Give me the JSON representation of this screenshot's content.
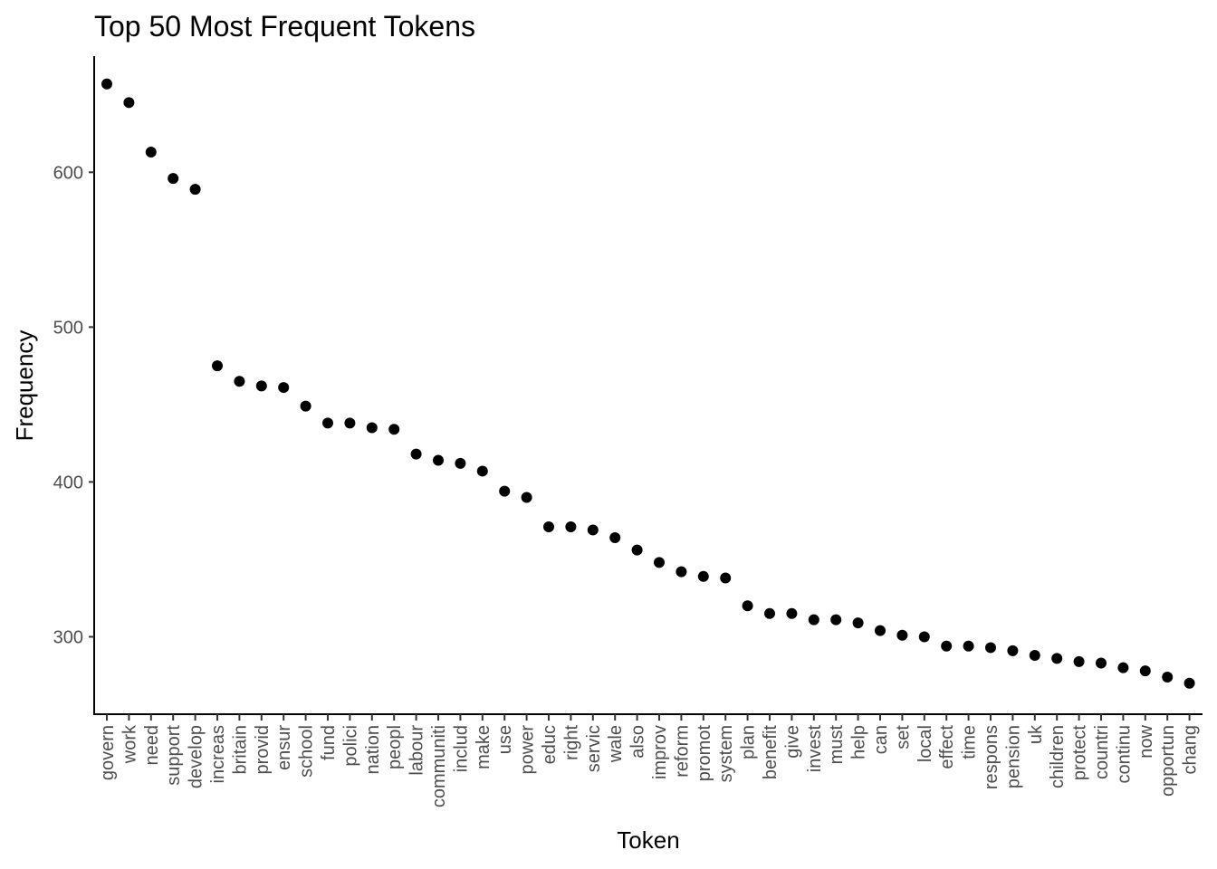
{
  "chart_data": {
    "type": "scatter",
    "title": "Top 50 Most Frequent Tokens",
    "xlabel": "Token",
    "ylabel": "Frequency",
    "ylim": [
      250,
      675
    ],
    "yticks": [
      300,
      400,
      500,
      600
    ],
    "grid": false,
    "point_color": "#000000",
    "categories": [
      "govern",
      "work",
      "need",
      "support",
      "develop",
      "increas",
      "britain",
      "provid",
      "ensur",
      "school",
      "fund",
      "polici",
      "nation",
      "peopl",
      "labour",
      "communiti",
      "includ",
      "make",
      "use",
      "power",
      "educ",
      "right",
      "servic",
      "wale",
      "also",
      "improv",
      "reform",
      "promot",
      "system",
      "plan",
      "benefit",
      "give",
      "invest",
      "must",
      "help",
      "can",
      "set",
      "local",
      "effect",
      "time",
      "respons",
      "pension",
      "uk",
      "children",
      "protect",
      "countri",
      "continu",
      "now",
      "opportun",
      "chang"
    ],
    "values": [
      657,
      645,
      613,
      596,
      589,
      475,
      465,
      462,
      461,
      449,
      438,
      438,
      435,
      434,
      418,
      414,
      412,
      407,
      394,
      390,
      371,
      371,
      369,
      364,
      356,
      348,
      342,
      339,
      338,
      320,
      315,
      315,
      311,
      311,
      309,
      304,
      301,
      300,
      294,
      294,
      293,
      291,
      288,
      286,
      284,
      283,
      280,
      278,
      274,
      270
    ]
  }
}
